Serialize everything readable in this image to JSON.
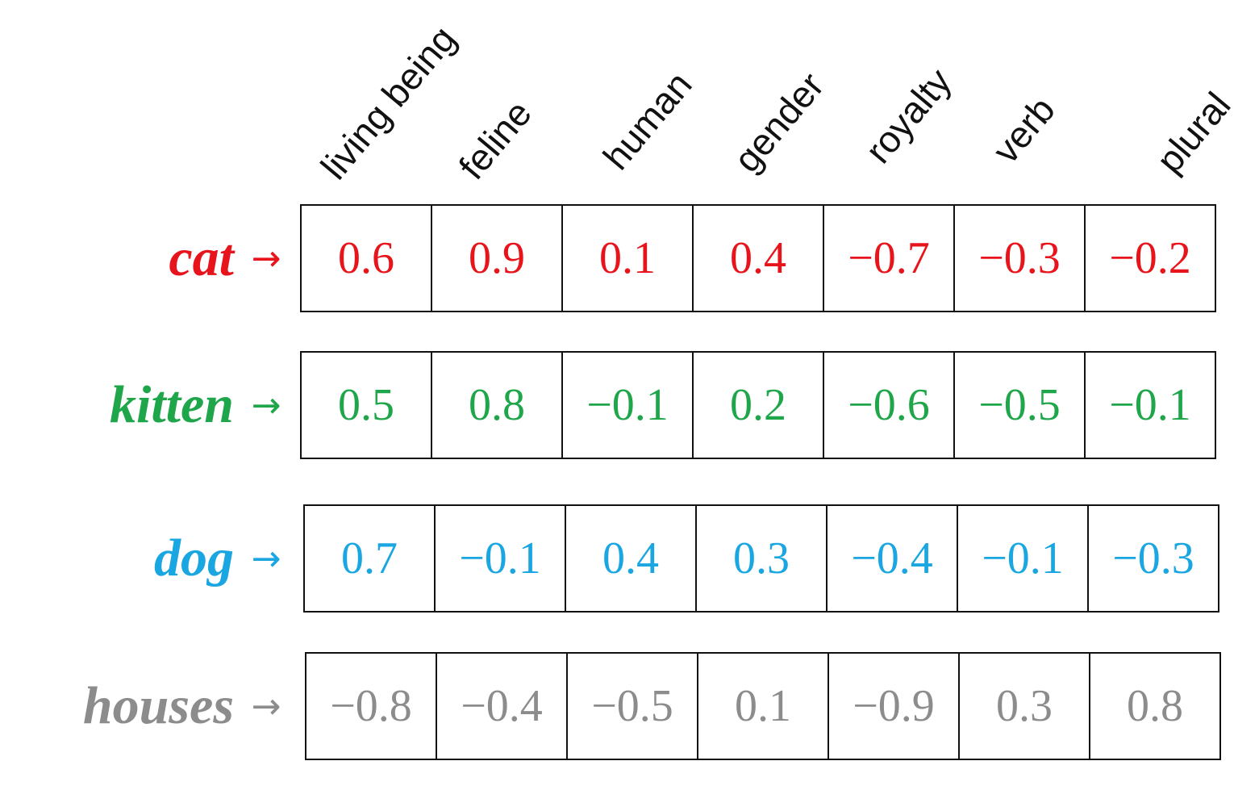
{
  "columns": [
    "living being",
    "feline",
    "human",
    "gender",
    "royalty",
    "verb",
    "plural"
  ],
  "rows": [
    {
      "word": "cat",
      "arrow": "→",
      "color": "#e8141c",
      "values": [
        "0.6",
        "0.9",
        "0.1",
        "0.4",
        "−0.7",
        "−0.3",
        "−0.2"
      ]
    },
    {
      "word": "kitten",
      "arrow": "→",
      "color": "#1fa64a",
      "values": [
        "0.5",
        "0.8",
        "−0.1",
        "0.2",
        "−0.6",
        "−0.5",
        "−0.1"
      ]
    },
    {
      "word": "dog",
      "arrow": "→",
      "color": "#1aa6e0",
      "values": [
        "0.7",
        "−0.1",
        "0.4",
        "0.3",
        "−0.4",
        "−0.1",
        "−0.3"
      ]
    },
    {
      "word": "houses",
      "arrow": "→",
      "color": "#8c8c8c",
      "values": [
        "−0.8",
        "−0.4",
        "−0.5",
        "0.1",
        "−0.9",
        "0.3",
        "0.8"
      ]
    }
  ]
}
